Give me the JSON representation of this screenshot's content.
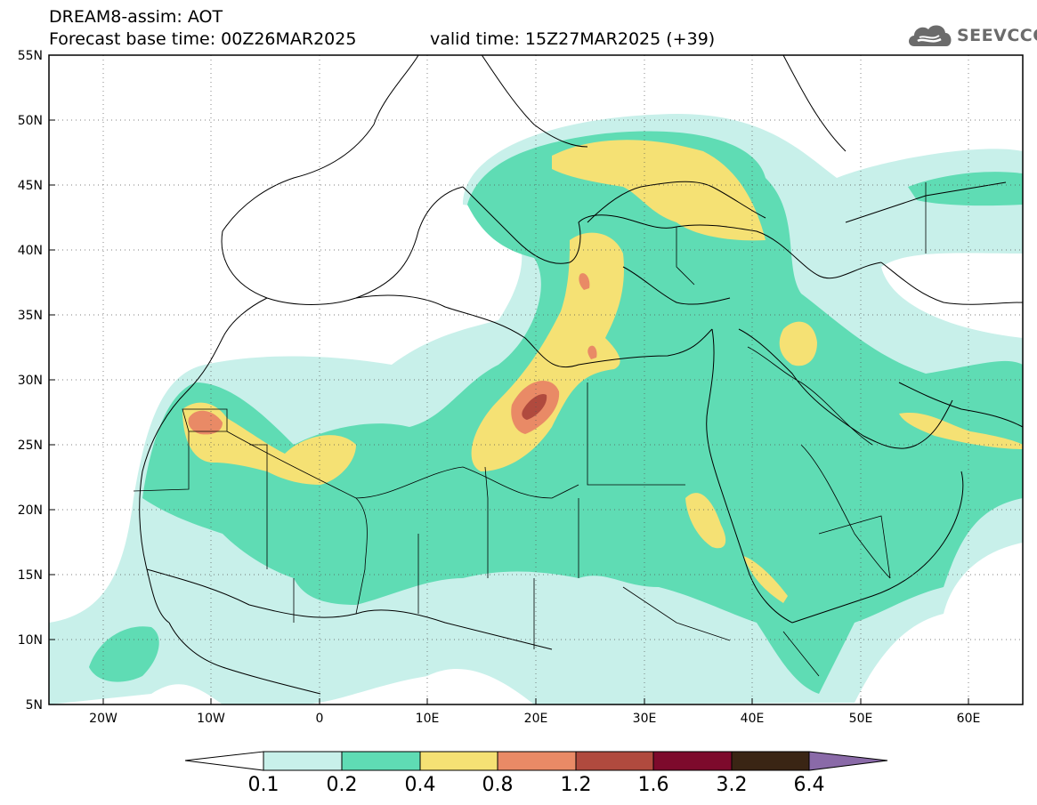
{
  "header": {
    "title": "DREAM8-assim: AOT",
    "base_time": "Forecast base time: 00Z26MAR2025",
    "valid_time": "valid time: 15Z27MAR2025 (+39)"
  },
  "logo": {
    "text": "SEEVCCC",
    "icon": "cloud-icon",
    "color": "#6b6b6b"
  },
  "map": {
    "lon_range": [
      -25,
      65
    ],
    "lat_range": [
      5,
      55
    ],
    "lat_ticks": [
      "5N",
      "10N",
      "15N",
      "20N",
      "25N",
      "30N",
      "35N",
      "40N",
      "45N",
      "50N",
      "55N"
    ],
    "lon_ticks": [
      "20W",
      "10W",
      "0",
      "10E",
      "20E",
      "30E",
      "40E",
      "50E",
      "60E"
    ],
    "grid": "dotted"
  },
  "colorbar": {
    "labels": [
      "0.1",
      "0.2",
      "0.4",
      "0.8",
      "1.2",
      "1.6",
      "3.2",
      "6.4"
    ],
    "colors": [
      "#ffffff",
      "#c8f0ea",
      "#5fdcb4",
      "#f5e174",
      "#e98a66",
      "#b04a3e",
      "#7d0a2c",
      "#3a2514",
      "#8a6aa8"
    ]
  }
}
